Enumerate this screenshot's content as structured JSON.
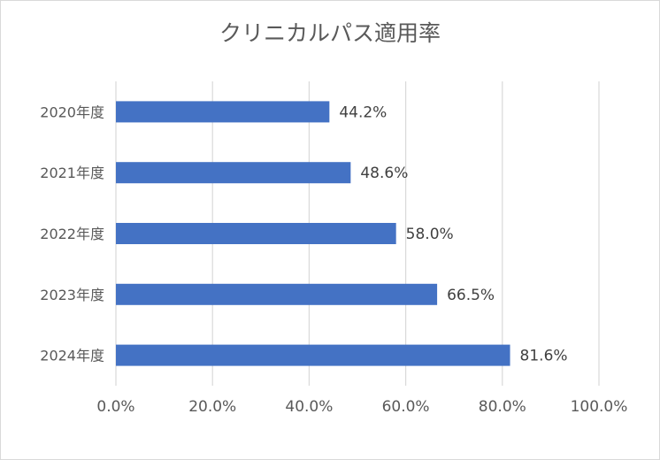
{
  "chart_data": {
    "type": "bar",
    "orientation": "horizontal",
    "title": "クリニカルパス適用率",
    "categories": [
      "2020年度",
      "2021年度",
      "2022年度",
      "2023年度",
      "2024年度"
    ],
    "values": [
      44.2,
      48.6,
      58.0,
      66.5,
      81.6
    ],
    "data_labels": [
      "44.2%",
      "48.6%",
      "58.0%",
      "66.5%",
      "81.6%"
    ],
    "x_ticks": [
      "0.0%",
      "20.0%",
      "40.0%",
      "60.0%",
      "80.0%",
      "100.0%"
    ],
    "xlim": [
      0,
      100
    ],
    "grid": true,
    "legend": "none",
    "bar_color": "#4472c4",
    "grid_color": "#d9d9d9"
  }
}
